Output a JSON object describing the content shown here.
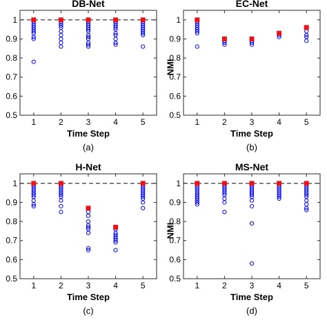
{
  "chart_data": [
    {
      "type": "scatter",
      "title": "DB-Net",
      "xlabel": "Time Step",
      "ylabel": "",
      "caption": "(a)",
      "x_ticks": [
        "1",
        "2",
        "3",
        "4",
        "5"
      ],
      "y_ticks": [
        "0.5",
        "0.6",
        "0.7",
        "0.8",
        "0.9",
        "1"
      ],
      "xlim": [
        0.5,
        5.5
      ],
      "ylim": [
        0.5,
        1.05
      ],
      "reference_line": 1.0,
      "series": [
        {
          "marker": "open-circle",
          "color": "#0000ff",
          "points": [
            {
              "x": 1,
              "y": 1.0
            },
            {
              "x": 1,
              "y": 0.99
            },
            {
              "x": 1,
              "y": 0.98
            },
            {
              "x": 1,
              "y": 0.97
            },
            {
              "x": 1,
              "y": 0.96
            },
            {
              "x": 1,
              "y": 0.95
            },
            {
              "x": 1,
              "y": 0.94
            },
            {
              "x": 1,
              "y": 0.93
            },
            {
              "x": 1,
              "y": 0.91
            },
            {
              "x": 1,
              "y": 0.9
            },
            {
              "x": 1,
              "y": 0.78
            },
            {
              "x": 2,
              "y": 1.0
            },
            {
              "x": 2,
              "y": 0.99
            },
            {
              "x": 2,
              "y": 0.98
            },
            {
              "x": 2,
              "y": 0.97
            },
            {
              "x": 2,
              "y": 0.96
            },
            {
              "x": 2,
              "y": 0.94
            },
            {
              "x": 2,
              "y": 0.92
            },
            {
              "x": 2,
              "y": 0.9
            },
            {
              "x": 2,
              "y": 0.88
            },
            {
              "x": 2,
              "y": 0.86
            },
            {
              "x": 3,
              "y": 1.0
            },
            {
              "x": 3,
              "y": 0.99
            },
            {
              "x": 3,
              "y": 0.98
            },
            {
              "x": 3,
              "y": 0.97
            },
            {
              "x": 3,
              "y": 0.96
            },
            {
              "x": 3,
              "y": 0.95
            },
            {
              "x": 3,
              "y": 0.94
            },
            {
              "x": 3,
              "y": 0.92
            },
            {
              "x": 3,
              "y": 0.91
            },
            {
              "x": 3,
              "y": 0.9
            },
            {
              "x": 3,
              "y": 0.88
            },
            {
              "x": 3,
              "y": 0.87
            },
            {
              "x": 3,
              "y": 0.86
            },
            {
              "x": 4,
              "y": 1.0
            },
            {
              "x": 4,
              "y": 0.99
            },
            {
              "x": 4,
              "y": 0.98
            },
            {
              "x": 4,
              "y": 0.97
            },
            {
              "x": 4,
              "y": 0.96
            },
            {
              "x": 4,
              "y": 0.95
            },
            {
              "x": 4,
              "y": 0.93
            },
            {
              "x": 4,
              "y": 0.92
            },
            {
              "x": 4,
              "y": 0.9
            },
            {
              "x": 4,
              "y": 0.88
            },
            {
              "x": 4,
              "y": 0.87
            },
            {
              "x": 5,
              "y": 1.0
            },
            {
              "x": 5,
              "y": 0.99
            },
            {
              "x": 5,
              "y": 0.98
            },
            {
              "x": 5,
              "y": 0.97
            },
            {
              "x": 5,
              "y": 0.96
            },
            {
              "x": 5,
              "y": 0.95
            },
            {
              "x": 5,
              "y": 0.94
            },
            {
              "x": 5,
              "y": 0.93
            },
            {
              "x": 5,
              "y": 0.92
            },
            {
              "x": 5,
              "y": 0.86
            }
          ]
        },
        {
          "marker": "filled-square",
          "color": "#e8131b",
          "points": [
            {
              "x": 1,
              "y": 1.0
            },
            {
              "x": 2,
              "y": 1.0
            },
            {
              "x": 3,
              "y": 1.0
            },
            {
              "x": 4,
              "y": 1.0
            },
            {
              "x": 5,
              "y": 1.0
            }
          ]
        }
      ]
    },
    {
      "type": "scatter",
      "title": "EC-Net",
      "xlabel": "Time Step",
      "ylabel": "NMI",
      "caption": "(b)",
      "x_ticks": [
        "1",
        "2",
        "3",
        "4",
        "5"
      ],
      "y_ticks": [
        "0.5",
        "0.6",
        "0.7",
        "0.8",
        "0.9",
        "1"
      ],
      "xlim": [
        0.5,
        5.5
      ],
      "ylim": [
        0.5,
        1.05
      ],
      "reference_line": null,
      "series": [
        {
          "marker": "open-circle",
          "color": "#0000ff",
          "points": [
            {
              "x": 1,
              "y": 1.0
            },
            {
              "x": 1,
              "y": 0.99
            },
            {
              "x": 1,
              "y": 0.98
            },
            {
              "x": 1,
              "y": 0.97
            },
            {
              "x": 1,
              "y": 0.96
            },
            {
              "x": 1,
              "y": 0.95
            },
            {
              "x": 1,
              "y": 0.94
            },
            {
              "x": 1,
              "y": 0.93
            },
            {
              "x": 1,
              "y": 0.86
            },
            {
              "x": 2,
              "y": 0.9
            },
            {
              "x": 2,
              "y": 0.89
            },
            {
              "x": 2,
              "y": 0.88
            },
            {
              "x": 2,
              "y": 0.87
            },
            {
              "x": 3,
              "y": 0.9
            },
            {
              "x": 3,
              "y": 0.89
            },
            {
              "x": 3,
              "y": 0.88
            },
            {
              "x": 3,
              "y": 0.87
            },
            {
              "x": 4,
              "y": 0.93
            },
            {
              "x": 4,
              "y": 0.92
            },
            {
              "x": 4,
              "y": 0.91
            },
            {
              "x": 5,
              "y": 0.96
            },
            {
              "x": 5,
              "y": 0.94
            },
            {
              "x": 5,
              "y": 0.92
            },
            {
              "x": 5,
              "y": 0.91
            },
            {
              "x": 5,
              "y": 0.89
            }
          ]
        },
        {
          "marker": "filled-square",
          "color": "#e8131b",
          "points": [
            {
              "x": 1,
              "y": 1.0
            },
            {
              "x": 2,
              "y": 0.9
            },
            {
              "x": 3,
              "y": 0.9
            },
            {
              "x": 4,
              "y": 0.93
            },
            {
              "x": 5,
              "y": 0.96
            }
          ]
        }
      ]
    },
    {
      "type": "scatter",
      "title": "H-Net",
      "xlabel": "Time Step",
      "ylabel": "",
      "caption": "(c)",
      "x_ticks": [
        "1",
        "2",
        "3",
        "4",
        "5"
      ],
      "y_ticks": [
        "0.5",
        "0.6",
        "0.7",
        "0.8",
        "0.9",
        "1"
      ],
      "xlim": [
        0.5,
        5.5
      ],
      "ylim": [
        0.5,
        1.05
      ],
      "reference_line": 1.0,
      "series": [
        {
          "marker": "open-circle",
          "color": "#0000ff",
          "points": [
            {
              "x": 1,
              "y": 1.0
            },
            {
              "x": 1,
              "y": 0.99
            },
            {
              "x": 1,
              "y": 0.98
            },
            {
              "x": 1,
              "y": 0.97
            },
            {
              "x": 1,
              "y": 0.96
            },
            {
              "x": 1,
              "y": 0.95
            },
            {
              "x": 1,
              "y": 0.94
            },
            {
              "x": 1,
              "y": 0.93
            },
            {
              "x": 1,
              "y": 0.91
            },
            {
              "x": 1,
              "y": 0.89
            },
            {
              "x": 1,
              "y": 0.88
            },
            {
              "x": 2,
              "y": 1.0
            },
            {
              "x": 2,
              "y": 0.99
            },
            {
              "x": 2,
              "y": 0.98
            },
            {
              "x": 2,
              "y": 0.97
            },
            {
              "x": 2,
              "y": 0.96
            },
            {
              "x": 2,
              "y": 0.95
            },
            {
              "x": 2,
              "y": 0.94
            },
            {
              "x": 2,
              "y": 0.93
            },
            {
              "x": 2,
              "y": 0.91
            },
            {
              "x": 2,
              "y": 0.88
            },
            {
              "x": 2,
              "y": 0.85
            },
            {
              "x": 3,
              "y": 0.87
            },
            {
              "x": 3,
              "y": 0.85
            },
            {
              "x": 3,
              "y": 0.83
            },
            {
              "x": 3,
              "y": 0.8
            },
            {
              "x": 3,
              "y": 0.78
            },
            {
              "x": 3,
              "y": 0.77
            },
            {
              "x": 3,
              "y": 0.76
            },
            {
              "x": 3,
              "y": 0.74
            },
            {
              "x": 3,
              "y": 0.66
            },
            {
              "x": 3,
              "y": 0.65
            },
            {
              "x": 4,
              "y": 0.77
            },
            {
              "x": 4,
              "y": 0.76
            },
            {
              "x": 4,
              "y": 0.74
            },
            {
              "x": 4,
              "y": 0.73
            },
            {
              "x": 4,
              "y": 0.72
            },
            {
              "x": 4,
              "y": 0.71
            },
            {
              "x": 4,
              "y": 0.7
            },
            {
              "x": 4,
              "y": 0.69
            },
            {
              "x": 4,
              "y": 0.65
            },
            {
              "x": 5,
              "y": 1.0
            },
            {
              "x": 5,
              "y": 0.99
            },
            {
              "x": 5,
              "y": 0.98
            },
            {
              "x": 5,
              "y": 0.97
            },
            {
              "x": 5,
              "y": 0.96
            },
            {
              "x": 5,
              "y": 0.95
            },
            {
              "x": 5,
              "y": 0.94
            },
            {
              "x": 5,
              "y": 0.93
            },
            {
              "x": 5,
              "y": 0.92
            },
            {
              "x": 5,
              "y": 0.9
            },
            {
              "x": 5,
              "y": 0.87
            }
          ]
        },
        {
          "marker": "filled-square",
          "color": "#e8131b",
          "points": [
            {
              "x": 1,
              "y": 1.0
            },
            {
              "x": 2,
              "y": 1.0
            },
            {
              "x": 3,
              "y": 0.87
            },
            {
              "x": 4,
              "y": 0.77
            },
            {
              "x": 5,
              "y": 1.0
            }
          ]
        }
      ]
    },
    {
      "type": "scatter",
      "title": "MS-Net",
      "xlabel": "Time Step",
      "ylabel": "NMI",
      "caption": "(d)",
      "x_ticks": [
        "1",
        "2",
        "3",
        "4",
        "5"
      ],
      "y_ticks": [
        "0.5",
        "0.6",
        "0.7",
        "0.8",
        "0.9",
        "1"
      ],
      "xlim": [
        0.5,
        5.5
      ],
      "ylim": [
        0.5,
        1.05
      ],
      "reference_line": 1.0,
      "series": [
        {
          "marker": "open-circle",
          "color": "#0000ff",
          "points": [
            {
              "x": 1,
              "y": 1.0
            },
            {
              "x": 1,
              "y": 0.99
            },
            {
              "x": 1,
              "y": 0.98
            },
            {
              "x": 1,
              "y": 0.97
            },
            {
              "x": 1,
              "y": 0.96
            },
            {
              "x": 1,
              "y": 0.95
            },
            {
              "x": 1,
              "y": 0.94
            },
            {
              "x": 1,
              "y": 0.93
            },
            {
              "x": 1,
              "y": 0.92
            },
            {
              "x": 1,
              "y": 0.91
            },
            {
              "x": 1,
              "y": 0.9
            },
            {
              "x": 1,
              "y": 0.89
            },
            {
              "x": 2,
              "y": 1.0
            },
            {
              "x": 2,
              "y": 0.99
            },
            {
              "x": 2,
              "y": 0.98
            },
            {
              "x": 2,
              "y": 0.97
            },
            {
              "x": 2,
              "y": 0.96
            },
            {
              "x": 2,
              "y": 0.95
            },
            {
              "x": 2,
              "y": 0.94
            },
            {
              "x": 2,
              "y": 0.92
            },
            {
              "x": 2,
              "y": 0.9
            },
            {
              "x": 2,
              "y": 0.85
            },
            {
              "x": 3,
              "y": 1.0
            },
            {
              "x": 3,
              "y": 0.99
            },
            {
              "x": 3,
              "y": 0.98
            },
            {
              "x": 3,
              "y": 0.97
            },
            {
              "x": 3,
              "y": 0.96
            },
            {
              "x": 3,
              "y": 0.95
            },
            {
              "x": 3,
              "y": 0.94
            },
            {
              "x": 3,
              "y": 0.93
            },
            {
              "x": 3,
              "y": 0.91
            },
            {
              "x": 3,
              "y": 0.88
            },
            {
              "x": 3,
              "y": 0.79
            },
            {
              "x": 3,
              "y": 0.58
            },
            {
              "x": 4,
              "y": 1.0
            },
            {
              "x": 4,
              "y": 0.99
            },
            {
              "x": 4,
              "y": 0.98
            },
            {
              "x": 4,
              "y": 0.97
            },
            {
              "x": 4,
              "y": 0.96
            },
            {
              "x": 4,
              "y": 0.95
            },
            {
              "x": 4,
              "y": 0.94
            },
            {
              "x": 4,
              "y": 0.93
            },
            {
              "x": 4,
              "y": 0.92
            },
            {
              "x": 5,
              "y": 1.0
            },
            {
              "x": 5,
              "y": 0.99
            },
            {
              "x": 5,
              "y": 0.98
            },
            {
              "x": 5,
              "y": 0.97
            },
            {
              "x": 5,
              "y": 0.96
            },
            {
              "x": 5,
              "y": 0.95
            },
            {
              "x": 5,
              "y": 0.94
            },
            {
              "x": 5,
              "y": 0.93
            },
            {
              "x": 5,
              "y": 0.91
            },
            {
              "x": 5,
              "y": 0.89
            },
            {
              "x": 5,
              "y": 0.87
            },
            {
              "x": 5,
              "y": 0.86
            }
          ]
        },
        {
          "marker": "filled-square",
          "color": "#e8131b",
          "points": [
            {
              "x": 1,
              "y": 1.0
            },
            {
              "x": 2,
              "y": 1.0
            },
            {
              "x": 3,
              "y": 1.0
            },
            {
              "x": 4,
              "y": 1.0
            },
            {
              "x": 5,
              "y": 1.0
            }
          ]
        }
      ]
    }
  ]
}
